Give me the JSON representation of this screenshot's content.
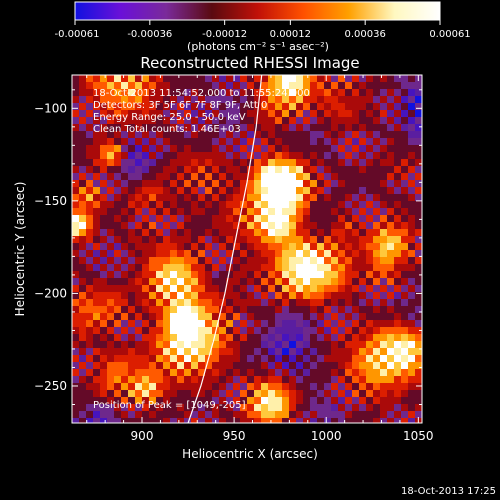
{
  "colorbar": {
    "ticks": [
      "-0.00061",
      "-0.00036",
      "-0.00012",
      "0.00012",
      "0.00036",
      "0.00061"
    ],
    "unit_label": "(photons cm⁻² s⁻¹ asec⁻²)",
    "colors": [
      "#1010e0",
      "#6a10d8",
      "#7a2a9a",
      "#5a0a10",
      "#c01008",
      "#ff5000",
      "#ffa000",
      "#fff8c0",
      "#ffffff"
    ]
  },
  "footer": {
    "timestamp": "18-Oct-2013 17:25"
  },
  "chart_data": {
    "type": "heatmap",
    "title": "Reconstructed RHESSI Image",
    "xlabel": "Heliocentric X (arcsec)",
    "ylabel": "Heliocentric Y (arcsec)",
    "xlim": [
      862,
      1052
    ],
    "ylim": [
      -270,
      -82
    ],
    "x_ticks": [
      900,
      950,
      1000,
      1050
    ],
    "x_tick_labels": [
      "900",
      "950",
      "1000",
      "1050"
    ],
    "y_ticks": [
      -100,
      -150,
      -200,
      -250
    ],
    "y_tick_labels": [
      "−100",
      "−150",
      "−200",
      "−250"
    ],
    "value_range": [
      -0.00061,
      0.00061
    ],
    "peak": {
      "x": 1049,
      "y": -205
    },
    "limb_curve": [
      [
        925,
        -270
      ],
      [
        932,
        -250
      ],
      [
        939,
        -225
      ],
      [
        945,
        -200
      ],
      [
        951,
        -170
      ],
      [
        957,
        -140
      ],
      [
        962,
        -110
      ],
      [
        965,
        -82
      ]
    ],
    "annotations": [
      "18-Oct-2013 11:54:52.000 to 11:55:24.000",
      "Detectors: 3F 5F 6F 7F 8F 9F, Att 0",
      "Energy Range: 25.0 - 50.0 keV",
      "Clean    Total counts: 1.46E+03",
      "Position of Peak = [1049,-205]"
    ]
  }
}
